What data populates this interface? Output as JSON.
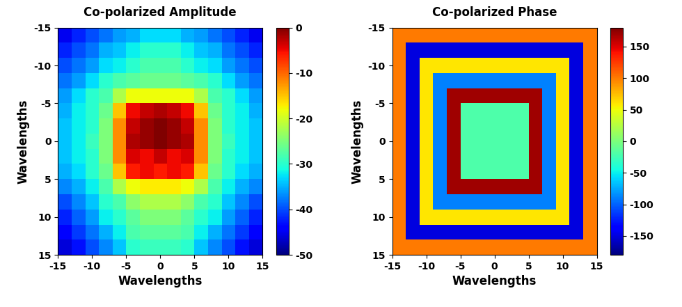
{
  "chart_data": [
    {
      "type": "heatmap",
      "title": "Co-polarized Amplitude",
      "x_label": "Wavelengths",
      "y_label": "Wavelengths",
      "x": [
        -14,
        -12,
        -10,
        -8,
        -6,
        -4,
        -2,
        0,
        2,
        4,
        6,
        8,
        10,
        12,
        14
      ],
      "y": [
        -14,
        -12,
        -10,
        -8,
        -6,
        -4,
        -2,
        0,
        2,
        4,
        6,
        8,
        10,
        12,
        14
      ],
      "xlim": [
        -15,
        15
      ],
      "ylim": [
        15,
        -15
      ],
      "xticks": [
        -15,
        -10,
        -5,
        0,
        5,
        10,
        15
      ],
      "yticks": [
        -15,
        -10,
        -5,
        0,
        5,
        10,
        15
      ],
      "cells": [
        [
          -45,
          -42,
          -40,
          -38,
          -36,
          -35,
          -33,
          -33,
          -33,
          -35,
          -36,
          -38,
          -40,
          -42,
          -45
        ],
        [
          -42,
          -40,
          -38,
          -35,
          -34,
          -32,
          -30,
          -30,
          -30,
          -32,
          -34,
          -35,
          -38,
          -40,
          -42
        ],
        [
          -40,
          -38,
          -36,
          -33,
          -32,
          -30,
          -28,
          -28,
          -28,
          -30,
          -32,
          -33,
          -36,
          -38,
          -40
        ],
        [
          -38,
          -36,
          -33,
          -30,
          -28,
          -27,
          -26,
          -26,
          -26,
          -27,
          -28,
          -30,
          -33,
          -36,
          -38
        ],
        [
          -36,
          -33,
          -30,
          -28,
          -22,
          -18,
          -18,
          -18,
          -18,
          -18,
          -22,
          -28,
          -30,
          -33,
          -36
        ],
        [
          -35,
          -32,
          -30,
          -26,
          -15,
          -5,
          -3,
          -2,
          -3,
          -5,
          -15,
          -26,
          -30,
          -32,
          -35
        ],
        [
          -34,
          -32,
          -30,
          -25,
          -12,
          -3,
          -1,
          0,
          -1,
          -3,
          -12,
          -25,
          -30,
          -32,
          -34
        ],
        [
          -34,
          -32,
          -29,
          -25,
          -12,
          -2,
          -1,
          0,
          -1,
          -2,
          -12,
          -25,
          -29,
          -32,
          -34
        ],
        [
          -34,
          -32,
          -30,
          -25,
          -12,
          -4,
          -5,
          -3,
          -5,
          -4,
          -12,
          -25,
          -30,
          -32,
          -34
        ],
        [
          -35,
          -33,
          -30,
          -26,
          -15,
          -6,
          -5,
          -6,
          -5,
          -6,
          -15,
          -26,
          -30,
          -33,
          -35
        ],
        [
          -37,
          -35,
          -32,
          -28,
          -22,
          -18,
          -17,
          -17,
          -17,
          -18,
          -22,
          -28,
          -32,
          -35,
          -37
        ],
        [
          -40,
          -37,
          -34,
          -30,
          -28,
          -24,
          -22,
          -22,
          -22,
          -24,
          -28,
          -30,
          -34,
          -37,
          -40
        ],
        [
          -42,
          -39,
          -36,
          -32,
          -30,
          -27,
          -25,
          -25,
          -25,
          -27,
          -30,
          -32,
          -36,
          -39,
          -42
        ],
        [
          -44,
          -41,
          -38,
          -35,
          -32,
          -28,
          -27,
          -27,
          -27,
          -28,
          -32,
          -35,
          -38,
          -41,
          -44
        ],
        [
          -46,
          -43,
          -40,
          -37,
          -34,
          -30,
          -29,
          -29,
          -29,
          -30,
          -34,
          -37,
          -40,
          -43,
          -46
        ]
      ],
      "colorbar": {
        "range": [
          -50,
          0
        ],
        "ticks": [
          0,
          -10,
          -20,
          -30,
          -40,
          -50
        ]
      }
    },
    {
      "type": "heatmap",
      "title": "Co-polarized Phase",
      "x_label": "Wavelengths",
      "y_label": "Wavelengths",
      "x": [
        -14,
        -12,
        -10,
        -8,
        -6,
        -4,
        -2,
        0,
        2,
        4,
        6,
        8,
        10,
        12,
        14
      ],
      "y": [
        -14,
        -12,
        -10,
        -8,
        -6,
        -4,
        -2,
        0,
        2,
        4,
        6,
        8,
        10,
        12,
        14
      ],
      "xlim": [
        -15,
        15
      ],
      "ylim": [
        15,
        -15
      ],
      "xticks": [
        -15,
        -10,
        -5,
        0,
        5,
        10,
        15
      ],
      "yticks": [
        -15,
        -10,
        -5,
        0,
        5,
        10,
        15
      ],
      "cells": [
        [
          100,
          100,
          100,
          100,
          100,
          100,
          100,
          100,
          100,
          100,
          100,
          100,
          100,
          100,
          100
        ],
        [
          100,
          -150,
          -150,
          -150,
          -150,
          -150,
          -150,
          -150,
          -150,
          -150,
          -150,
          -150,
          -150,
          -150,
          100
        ],
        [
          100,
          -150,
          60,
          60,
          60,
          60,
          60,
          60,
          60,
          60,
          60,
          60,
          60,
          -150,
          100
        ],
        [
          100,
          -150,
          60,
          -90,
          -90,
          -90,
          -90,
          -90,
          -90,
          -90,
          -90,
          -90,
          60,
          -150,
          100
        ],
        [
          100,
          -150,
          60,
          -90,
          170,
          170,
          170,
          170,
          170,
          170,
          170,
          -90,
          60,
          -150,
          100
        ],
        [
          100,
          -150,
          60,
          -90,
          170,
          -20,
          -20,
          -20,
          -20,
          -20,
          170,
          -90,
          60,
          -150,
          100
        ],
        [
          100,
          -150,
          60,
          -90,
          170,
          -20,
          -20,
          -20,
          -20,
          -20,
          170,
          -90,
          60,
          -150,
          100
        ],
        [
          100,
          -150,
          60,
          -90,
          170,
          -20,
          -20,
          -20,
          -20,
          -20,
          170,
          -90,
          60,
          -150,
          100
        ],
        [
          100,
          -150,
          60,
          -90,
          170,
          -20,
          -20,
          -20,
          -20,
          -20,
          170,
          -90,
          60,
          -150,
          100
        ],
        [
          100,
          -150,
          60,
          -90,
          170,
          -20,
          -20,
          -20,
          -20,
          -20,
          170,
          -90,
          60,
          -150,
          100
        ],
        [
          100,
          -150,
          60,
          -90,
          170,
          170,
          170,
          170,
          170,
          170,
          170,
          -90,
          60,
          -150,
          100
        ],
        [
          100,
          -150,
          60,
          -90,
          -90,
          -90,
          -90,
          -90,
          -90,
          -90,
          -90,
          -90,
          60,
          -150,
          100
        ],
        [
          100,
          -150,
          60,
          60,
          60,
          60,
          60,
          60,
          60,
          60,
          60,
          60,
          60,
          -150,
          100
        ],
        [
          100,
          -150,
          -150,
          -150,
          -150,
          -150,
          -150,
          -150,
          -150,
          -150,
          -150,
          -150,
          -150,
          -150,
          100
        ],
        [
          100,
          100,
          100,
          100,
          100,
          100,
          100,
          100,
          100,
          100,
          100,
          100,
          100,
          100,
          100
        ]
      ],
      "colorbar": {
        "range": [
          -180,
          180
        ],
        "ticks": [
          150,
          100,
          50,
          0,
          -50,
          -100,
          -150
        ]
      }
    }
  ]
}
